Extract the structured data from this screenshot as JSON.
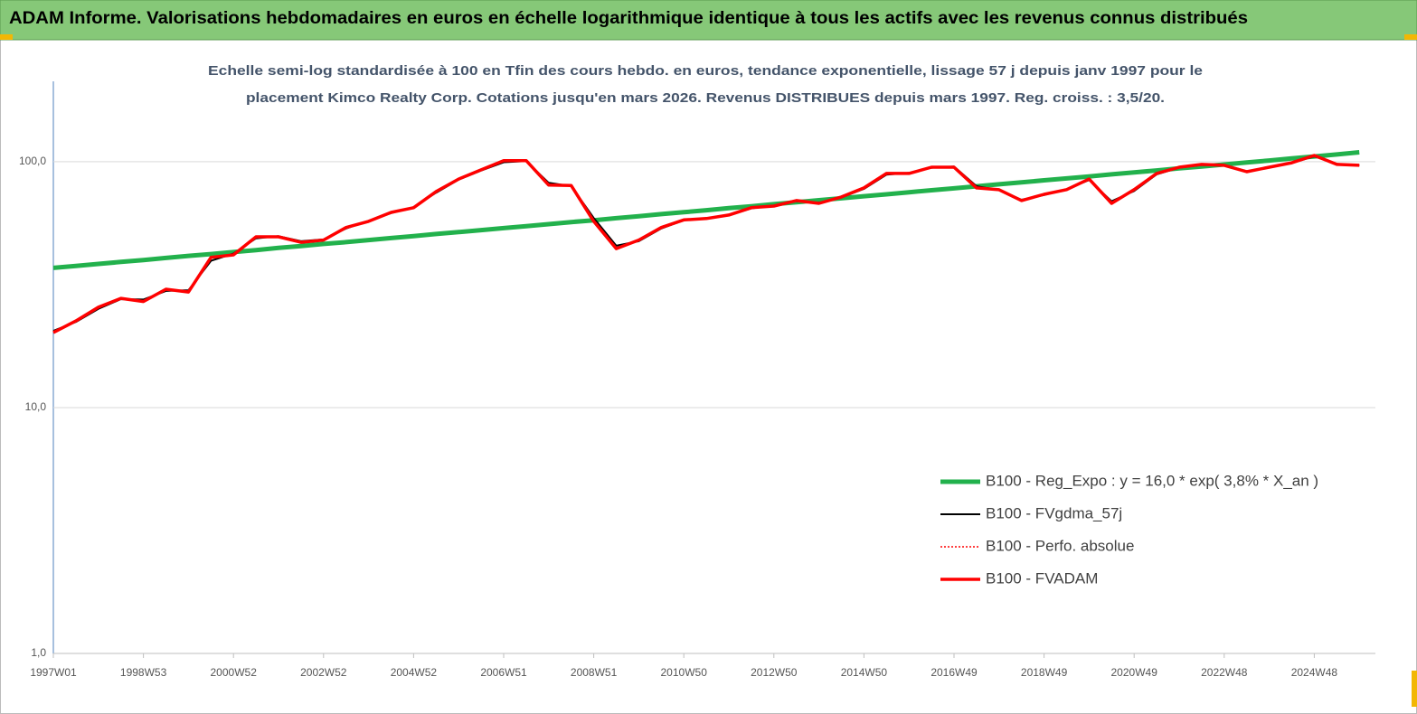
{
  "chart_data": {
    "type": "line",
    "title": "ADAM Informe. Valorisations hebdomadaires en euros en échelle logarithmique identique à tous les actifs avec les revenus connus distribués",
    "subtitle": [
      "Echelle semi-log standardisée à 100 en Tfin des cours hebdo. en euros, tendance exponentielle, lissage 57 j depuis janv 1997 pour le",
      "placement Kimco Realty Corp. Cotations jusqu'en mars 2026.  Revenus DISTRIBUES depuis mars 1997. Reg. croiss. : 3,5/20."
    ],
    "categories": [
      "1997W01",
      null,
      null,
      null,
      "1998W53",
      null,
      null,
      null,
      "2000W52",
      null,
      null,
      null,
      "2002W52",
      null,
      null,
      null,
      "2004W52",
      null,
      null,
      null,
      "2006W51",
      null,
      null,
      null,
      "2008W51",
      null,
      null,
      null,
      "2010W50",
      null,
      null,
      null,
      "2012W50",
      null,
      null,
      null,
      "2014W50",
      null,
      null,
      null,
      "2016W49",
      null,
      null,
      null,
      "2018W49",
      null,
      null,
      null,
      "2020W49",
      null,
      null,
      null,
      "2022W48",
      null,
      null,
      null,
      "2024W48",
      null,
      null
    ],
    "log_scale": true,
    "ylim": [
      1,
      200
    ],
    "yticks": [
      {
        "value": 1,
        "label": "1,0"
      },
      {
        "value": 10,
        "label": "10,0"
      },
      {
        "value": 100,
        "label": "100,0"
      }
    ],
    "grid": true,
    "legend": "right",
    "series": [
      {
        "name": "B100 - Reg_Expo : y = 16,0 *  exp( 3,8% *  X_an )",
        "color": "#22b14c",
        "width": 5,
        "dashed": false,
        "values": [
          37.0,
          37.7,
          38.4,
          39.1,
          39.8,
          40.6,
          41.4,
          42.1,
          42.9,
          43.7,
          44.6,
          45.4,
          46.3,
          47.1,
          48.0,
          48.9,
          49.8,
          50.8,
          51.7,
          52.7,
          53.7,
          54.7,
          55.7,
          56.8,
          57.8,
          58.9,
          60.0,
          61.2,
          62.3,
          63.5,
          64.7,
          65.9,
          67.2,
          68.4,
          69.7,
          71.0,
          72.4,
          73.7,
          75.1,
          76.5,
          77.9,
          79.4,
          80.9,
          82.4,
          84.0,
          85.5,
          87.1,
          88.8,
          90.4,
          92.1,
          93.9,
          95.6,
          97.4,
          99.3,
          101.1,
          103.1,
          105.0,
          107.0,
          109.2
        ]
      },
      {
        "name": "B100 - FVgdma_57j",
        "color": "#000000",
        "width": 2,
        "dashed": false,
        "values": [
          20.5,
          22.3,
          25.2,
          27.6,
          27.5,
          29.8,
          30,
          39.5,
          42.3,
          48.8,
          49.8,
          47.5,
          48.3,
          53.5,
          57.5,
          61.8,
          65.3,
          74.8,
          84.5,
          92,
          99.5,
          100.5,
          82,
          79.5,
          59,
          45.5,
          47.5,
          53.5,
          57.8,
          58.9,
          60.5,
          64.6,
          66.3,
          69,
          68.1,
          71.5,
          77.5,
          88.5,
          90,
          94.5,
          95.5,
          79.5,
          76.5,
          70,
          73.2,
          77.3,
          84.2,
          69,
          76,
          88.8,
          94.6,
          97,
          96.9,
          91.5,
          94.6,
          98.8,
          105,
          98,
          96.5
        ]
      },
      {
        "name": "B100 - Perfo. absolue",
        "color": "#ff0000",
        "width": 1.5,
        "dashed": true,
        "values": [
          20.2,
          22.5,
          25.6,
          27.8,
          27,
          30.3,
          29.5,
          40.8,
          41.8,
          49.5,
          49.5,
          47,
          48,
          54,
          57.2,
          62.2,
          65,
          75.6,
          85,
          92.7,
          101,
          101,
          80.3,
          80,
          57.2,
          44.3,
          48,
          54,
          58,
          58.7,
          60.7,
          65,
          66,
          69.5,
          67.7,
          71.9,
          78.2,
          89.6,
          89.6,
          95,
          95,
          78.2,
          76.9,
          69.5,
          73.7,
          77,
          85,
          67.7,
          77,
          89.6,
          95,
          97.5,
          96.7,
          91,
          95,
          99,
          106,
          97.5,
          96.7
        ]
      },
      {
        "name": "B100 - FVADAM",
        "color": "#ff0000",
        "width": 3.5,
        "dashed": false,
        "values": [
          20.2,
          22.5,
          25.6,
          27.8,
          27,
          30.3,
          29.5,
          40.8,
          41.8,
          49.5,
          49.5,
          47,
          48,
          54,
          57.2,
          62.2,
          65,
          75.6,
          85,
          92.7,
          101,
          101,
          80.3,
          80,
          57.2,
          44.3,
          48,
          54,
          58,
          58.7,
          60.7,
          65,
          66,
          69.5,
          67.7,
          71.9,
          78.2,
          89.6,
          89.6,
          95,
          95,
          78.2,
          76.9,
          69.5,
          73.7,
          77,
          85,
          67.7,
          77,
          89.6,
          95,
          97.5,
          96.7,
          91,
          95,
          99,
          106,
          97.5,
          96.7
        ]
      }
    ]
  }
}
